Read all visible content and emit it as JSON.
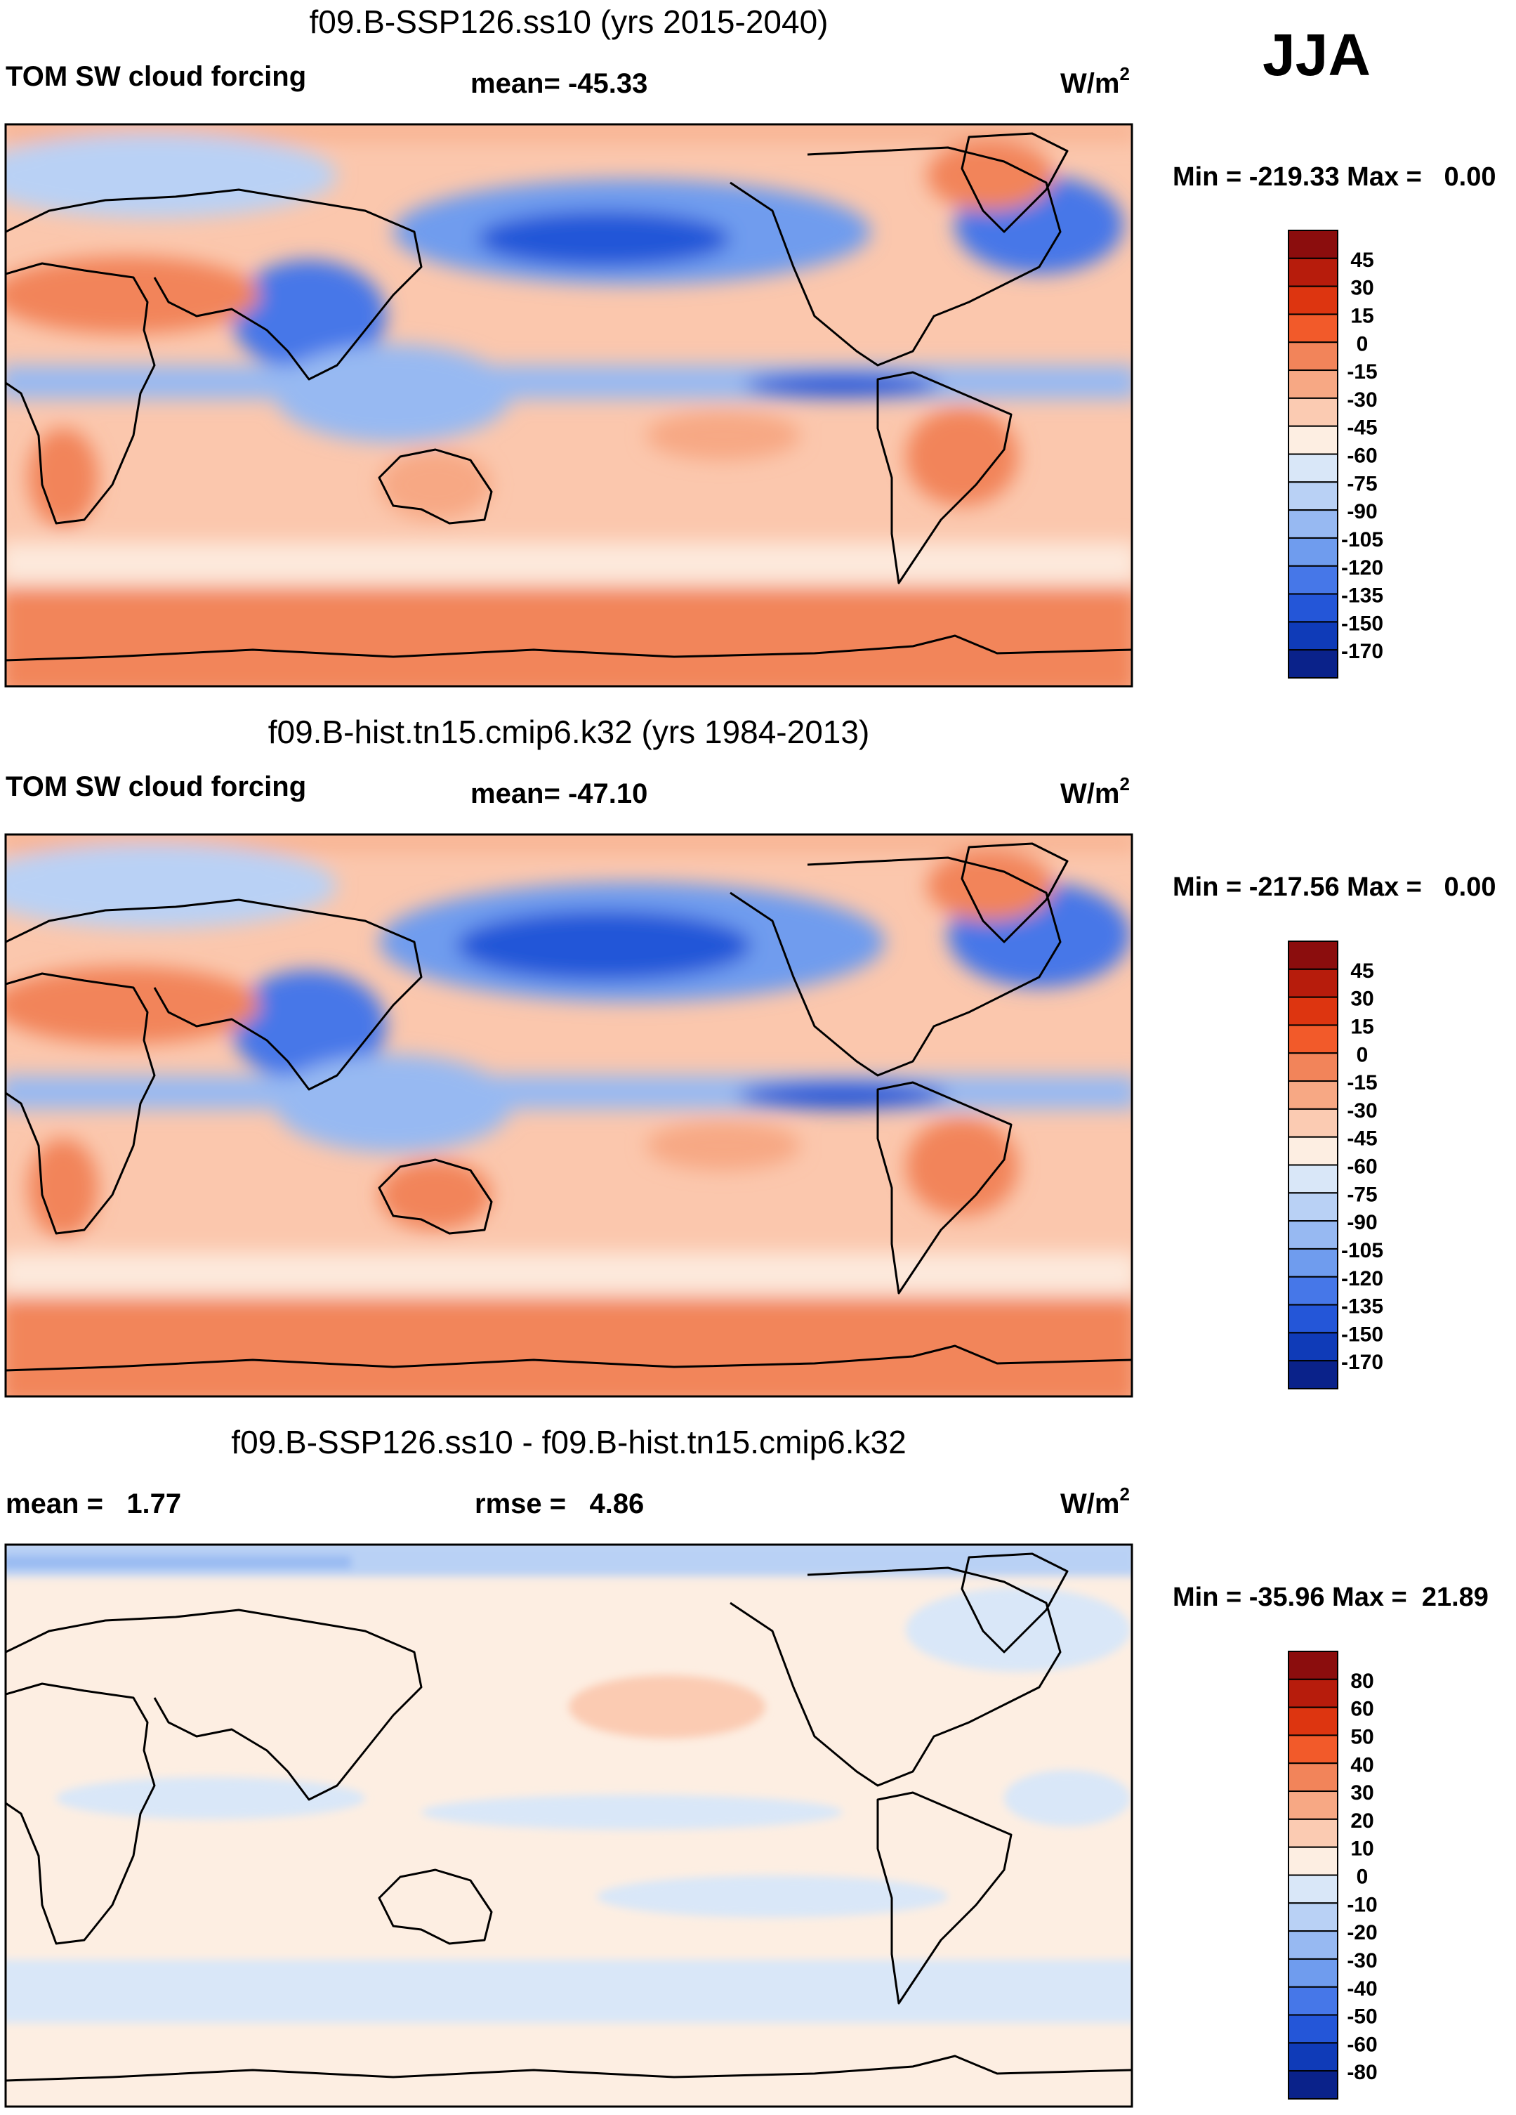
{
  "season": "JJA",
  "chart_data": [
    {
      "type": "heatmap",
      "kind": "global filled-contour map",
      "title": "f09.B-SSP126.ss10 (yrs 2015-2040)",
      "variable": "TOM SW cloud forcing",
      "stat_label": "mean=",
      "stat_value": "-45.33",
      "units": "W/m",
      "units_exp": "2",
      "min": -219.33,
      "max": 0.0,
      "minmax_text": "Min = -219.33 Max =   0.00",
      "legend": {
        "labels": [
          "45",
          "30",
          "15",
          "0",
          "-15",
          "-30",
          "-45",
          "-60",
          "-75",
          "-90",
          "-105",
          "-120",
          "-135",
          "-150",
          "-170"
        ],
        "colors": [
          "#8b0d0d",
          "#b71c0c",
          "#dd3510",
          "#f25a2a",
          "#f2845a",
          "#f7a884",
          "#fbcbb2",
          "#fdeee2",
          "#d9e7f8",
          "#b9d1f5",
          "#97b9f2",
          "#6f9cee",
          "#4677e8",
          "#2456d8",
          "#0f3bb8",
          "#0a228a"
        ]
      }
    },
    {
      "type": "heatmap",
      "kind": "global filled-contour map",
      "title": "f09.B-hist.tn15.cmip6.k32 (yrs 1984-2013)",
      "variable": "TOM SW cloud forcing",
      "stat_label": "mean=",
      "stat_value": "-47.10",
      "units": "W/m",
      "units_exp": "2",
      "min": -217.56,
      "max": 0.0,
      "minmax_text": "Min = -217.56 Max =   0.00",
      "legend": {
        "labels": [
          "45",
          "30",
          "15",
          "0",
          "-15",
          "-30",
          "-45",
          "-60",
          "-75",
          "-90",
          "-105",
          "-120",
          "-135",
          "-150",
          "-170"
        ],
        "colors": [
          "#8b0d0d",
          "#b71c0c",
          "#dd3510",
          "#f25a2a",
          "#f2845a",
          "#f7a884",
          "#fbcbb2",
          "#fdeee2",
          "#d9e7f8",
          "#b9d1f5",
          "#97b9f2",
          "#6f9cee",
          "#4677e8",
          "#2456d8",
          "#0f3bb8",
          "#0a228a"
        ]
      }
    },
    {
      "type": "heatmap",
      "kind": "global filled-contour difference map",
      "title": "f09.B-SSP126.ss10 - f09.B-hist.tn15.cmip6.k32",
      "stat_label": "mean =",
      "stat_value": "1.77",
      "rmse_label": "rmse =",
      "rmse_value": "4.86",
      "units": "W/m",
      "units_exp": "2",
      "min": -35.96,
      "max": 21.89,
      "minmax_text": "Min = -35.96 Max =  21.89",
      "legend": {
        "labels": [
          "80",
          "60",
          "50",
          "40",
          "30",
          "20",
          "10",
          "0",
          "-10",
          "-20",
          "-30",
          "-40",
          "-50",
          "-60",
          "-80"
        ],
        "colors": [
          "#8b0d0d",
          "#b71c0c",
          "#dd3510",
          "#f25a2a",
          "#f2845a",
          "#f7a884",
          "#fbcbb2",
          "#fdeee2",
          "#d9e7f8",
          "#b9d1f5",
          "#97b9f2",
          "#6f9cee",
          "#4677e8",
          "#2456d8",
          "#0f3bb8",
          "#0a228a"
        ]
      }
    }
  ]
}
